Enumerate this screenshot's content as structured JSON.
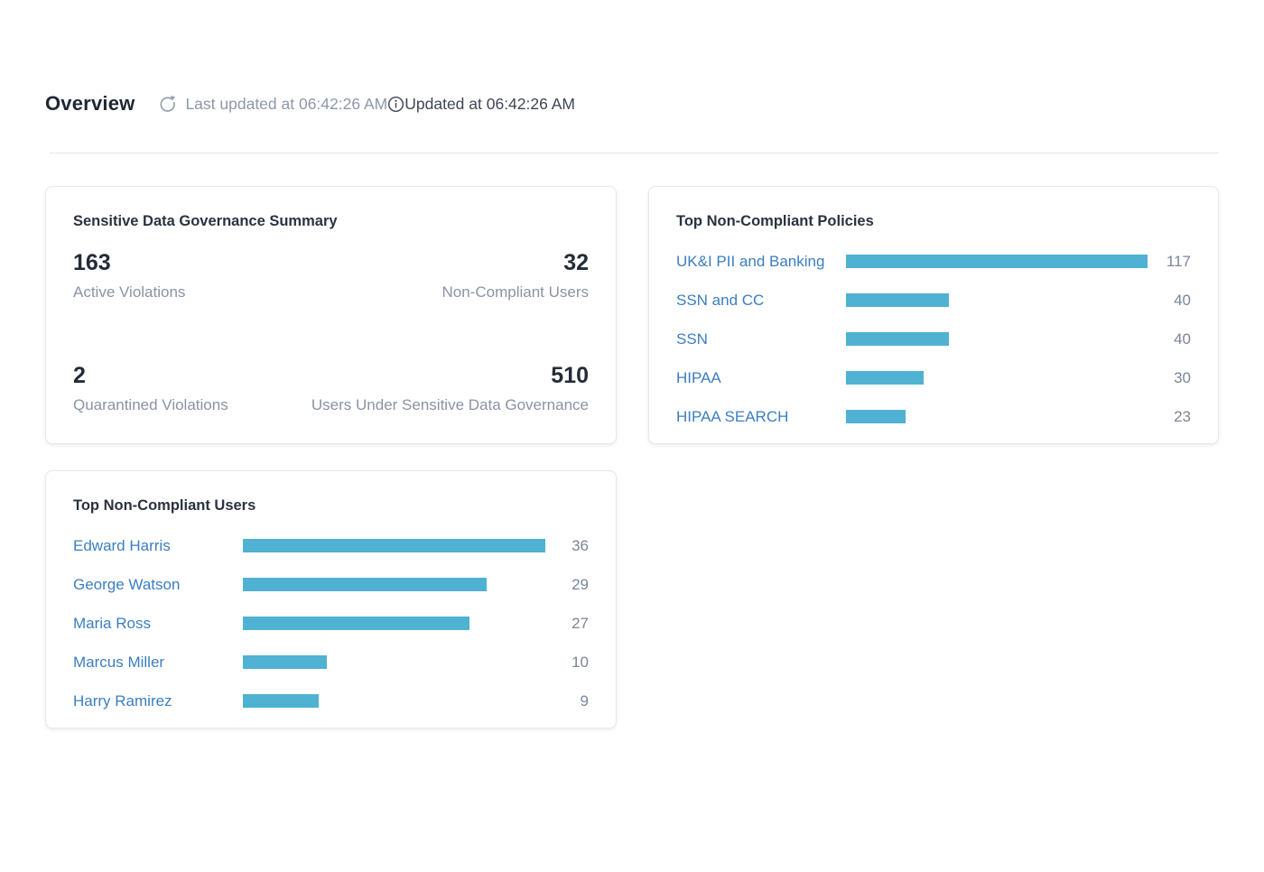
{
  "header": {
    "title": "Overview",
    "last_updated": "Last updated at 06:42:26 AM",
    "updated_text": "Updated at 06:42:26 AM"
  },
  "colors": {
    "bar": "#4FB2D2",
    "link": "#3C7EC1",
    "number_dark": "#242B38",
    "label_gray": "#8A93A3"
  },
  "summary_card": {
    "title": "Sensitive Data Governance Summary",
    "stats": [
      {
        "value": "163",
        "label": "Active Violations"
      },
      {
        "value": "32",
        "label": "Non-Compliant Users"
      },
      {
        "value": "2",
        "label": "Quarantined Violations"
      },
      {
        "value": "510",
        "label": "Users Under Sensitive Data Governance"
      }
    ]
  },
  "chart_data": [
    {
      "type": "bar",
      "orientation": "horizontal",
      "title": "Top Non-Compliant Policies",
      "categories": [
        "UK&I PII and Banking",
        "SSN and CC",
        "SSN",
        "HIPAA",
        "HIPAA SEARCH"
      ],
      "values": [
        117,
        40,
        40,
        30,
        23
      ],
      "max_value": 117,
      "bar_color": "#4FB2D2",
      "value_labels": "right"
    },
    {
      "type": "bar",
      "orientation": "horizontal",
      "title": "Top Non-Compliant Users",
      "categories": [
        "Edward Harris",
        "George Watson",
        "Maria Ross",
        "Marcus Miller",
        "Harry Ramirez"
      ],
      "values": [
        36,
        29,
        27,
        10,
        9
      ],
      "max_value": 36,
      "bar_color": "#4FB2D2",
      "value_labels": "right"
    }
  ]
}
